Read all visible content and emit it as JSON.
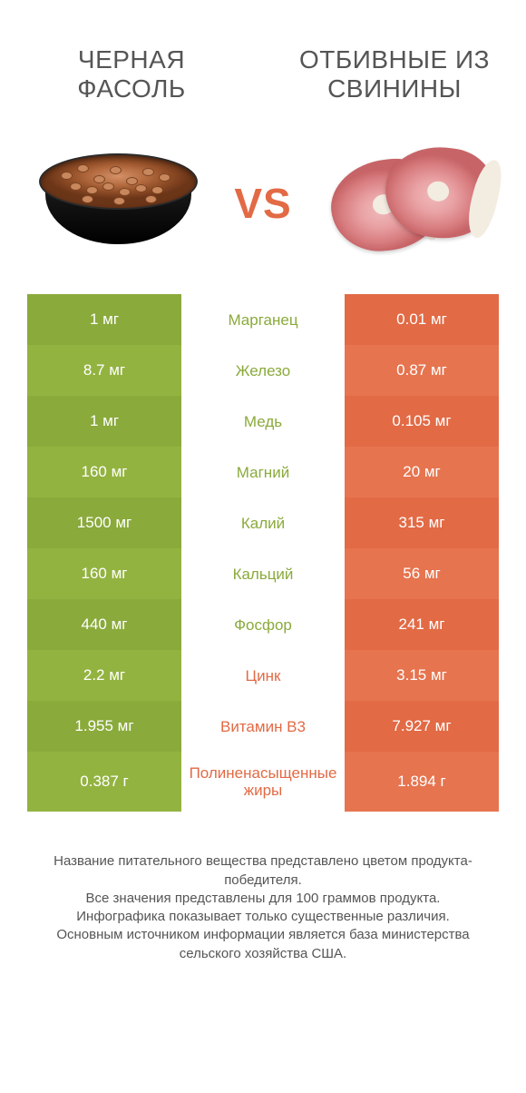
{
  "header": {
    "left_title": "ЧЕРНАЯ ФАСОЛЬ",
    "right_title": "ОТБИВНЫЕ ИЗ СВИНИНЫ",
    "vs_label": "VS"
  },
  "colors": {
    "left_a": "#8aaa3b",
    "left_b": "#93b340",
    "right_a": "#e26a45",
    "right_b": "#e6744f",
    "text_body": "#555555",
    "vs_color": "#e26a45",
    "background": "#ffffff"
  },
  "comparison": {
    "type": "infographic-table",
    "left_column_color": "green",
    "right_column_color": "orange",
    "rows": [
      {
        "nutrient": "Марганец",
        "left": "1 мг",
        "right": "0.01 мг",
        "winner": "left"
      },
      {
        "nutrient": "Железо",
        "left": "8.7 мг",
        "right": "0.87 мг",
        "winner": "left"
      },
      {
        "nutrient": "Медь",
        "left": "1 мг",
        "right": "0.105 мг",
        "winner": "left"
      },
      {
        "nutrient": "Магний",
        "left": "160 мг",
        "right": "20 мг",
        "winner": "left"
      },
      {
        "nutrient": "Калий",
        "left": "1500 мг",
        "right": "315 мг",
        "winner": "left"
      },
      {
        "nutrient": "Кальций",
        "left": "160 мг",
        "right": "56 мг",
        "winner": "left"
      },
      {
        "nutrient": "Фосфор",
        "left": "440 мг",
        "right": "241 мг",
        "winner": "left"
      },
      {
        "nutrient": "Цинк",
        "left": "2.2 мг",
        "right": "3.15 мг",
        "winner": "right"
      },
      {
        "nutrient": "Витамин B3",
        "left": "1.955 мг",
        "right": "7.927 мг",
        "winner": "right"
      },
      {
        "nutrient": "Полиненасыщенные жиры",
        "left": "0.387 г",
        "right": "1.894 г",
        "winner": "right",
        "tall": true
      }
    ]
  },
  "footer_lines": [
    "Название питательного вещества представлено цветом продукта-победителя.",
    "Все значения представлены для 100 граммов продукта.",
    "Инфографика показывает только существенные различия.",
    "Основным источником информации является база министерства сельского хозяйства США."
  ]
}
